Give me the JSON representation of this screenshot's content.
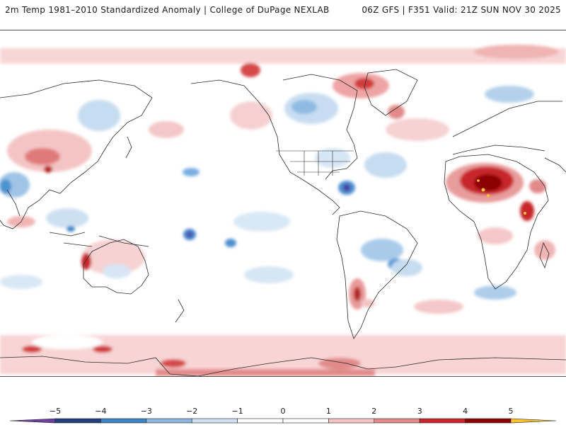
{
  "header": {
    "title": "2m Temp 1981–2010 Standardized Anomaly | College of DuPage NEXLAB",
    "run_info": "06Z GFS | F351 Valid: 21Z SUN NOV 30 2025"
  },
  "map": {
    "variable": "2m temperature standardized anomaly",
    "projection": "cylindrical-pacific-centered",
    "hotspots": [
      {
        "region": "Sahel / Central Africa",
        "anomaly": "strong warm (+4 to +5)"
      },
      {
        "region": "East Africa",
        "anomaly": "warm (+3 to +5)"
      },
      {
        "region": "Southern Argentina / Chile",
        "anomaly": "warm (+3)"
      },
      {
        "region": "Western Australia",
        "anomaly": "warm (+3)"
      },
      {
        "region": "Southern Ocean band",
        "anomaly": "warm (+2 to +3)"
      },
      {
        "region": "Caribbean / Central America",
        "anomaly": "cold (-3 to -4)"
      },
      {
        "region": "Tropical Pacific spots",
        "anomaly": "cold (-3 to -4)"
      },
      {
        "region": "Southern Brazil",
        "anomaly": "cool (-2)"
      }
    ]
  },
  "colorbar": {
    "ticks": [
      "−5",
      "−4",
      "−3",
      "−2",
      "−1",
      "0",
      "1",
      "2",
      "3",
      "4",
      "5"
    ],
    "colors": [
      "#6a3fa0",
      "#233f80",
      "#3b84c6",
      "#8cb7e0",
      "#cfe1f2",
      "#ffffff",
      "#ffffff",
      "#f4c3c3",
      "#e58a8a",
      "#c7262b",
      "#8b0000",
      "#ffc233"
    ]
  }
}
